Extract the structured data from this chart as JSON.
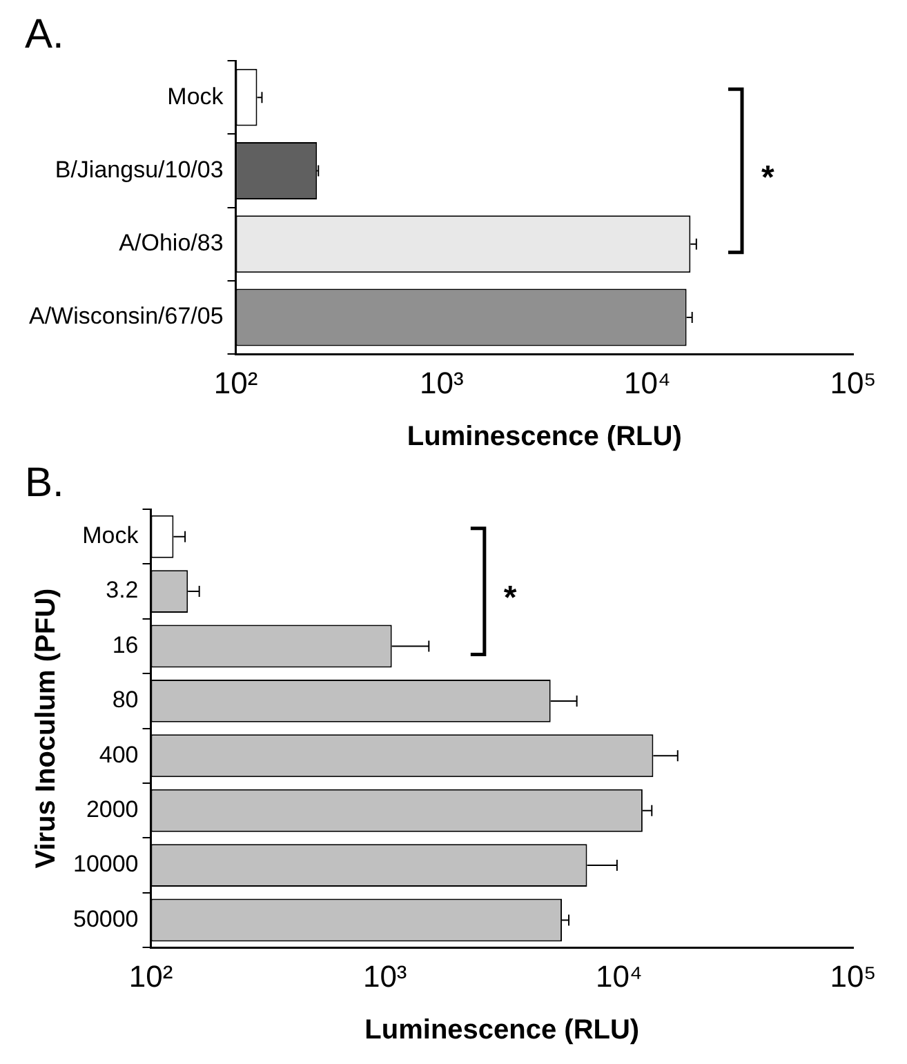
{
  "chart_data": [
    {
      "type": "bar",
      "title": "A.",
      "orientation": "horizontal",
      "log": "x",
      "xlabel": "Luminescence (RLU)",
      "categories": [
        "Mock",
        "B/Jiangsu/10/03",
        "A/Ohio/83",
        "A/Wisconsin/67/05"
      ],
      "values": [
        127,
        248,
        16200,
        15500
      ],
      "errors": [
        [
          127,
          134
        ],
        [
          248,
          252
        ],
        [
          16200,
          17300
        ],
        [
          15500,
          16500
        ]
      ],
      "colors": [
        "#ffffff",
        "#606060",
        "#e8e8e8",
        "#909090"
      ],
      "xlim": [
        100,
        100000
      ],
      "xticks": [
        {
          "value": 100,
          "label": "10²"
        },
        {
          "value": 1000,
          "label": "10³"
        },
        {
          "value": 10000,
          "label": "10⁴"
        },
        {
          "value": 100000,
          "label": "10⁵"
        }
      ],
      "annotations": [
        "*"
      ],
      "grid": false,
      "legend": false
    },
    {
      "type": "bar",
      "title": "B.",
      "orientation": "horizontal",
      "log": "x",
      "xlabel": "Luminescence (RLU)",
      "ylabel": "Virus Inoculum (PFU)",
      "categories": [
        "Mock",
        "3.2",
        "16",
        "80",
        "400",
        "2000",
        "10000",
        "50000"
      ],
      "values": [
        125,
        144,
        1070,
        5100,
        14000,
        12600,
        7300,
        5700
      ],
      "errors": [
        [
          125,
          140
        ],
        [
          144,
          161
        ],
        [
          1070,
          1540
        ],
        [
          5100,
          6600
        ],
        [
          14000,
          17800
        ],
        [
          12600,
          13800
        ],
        [
          7300,
          9800
        ],
        [
          5700,
          6100
        ]
      ],
      "colors": [
        "#ffffff",
        "#c0c0c0",
        "#c0c0c0",
        "#c0c0c0",
        "#c0c0c0",
        "#c0c0c0",
        "#c0c0c0",
        "#c0c0c0"
      ],
      "xlim": [
        100,
        100000
      ],
      "xticks": [
        {
          "value": 100,
          "label": "10²"
        },
        {
          "value": 1000,
          "label": "10³"
        },
        {
          "value": 10000,
          "label": "10⁴"
        },
        {
          "value": 100000,
          "label": "10⁵"
        }
      ],
      "annotations": [
        "*"
      ],
      "grid": false,
      "legend": false
    }
  ]
}
